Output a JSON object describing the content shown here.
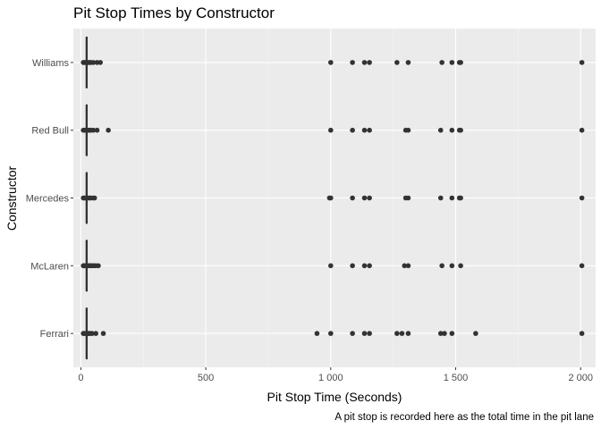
{
  "chart_data": {
    "type": "boxplot",
    "title": "Pit Stop Times by Constructor",
    "xlabel": "Pit Stop Time (Seconds)",
    "ylabel": "Constructor",
    "caption": "A pit stop is recorded here as the total time in the pit lane",
    "xlim": [
      -30,
      2060
    ],
    "x_ticks": [
      {
        "value": 0,
        "label": "0"
      },
      {
        "value": 500,
        "label": "500"
      },
      {
        "value": 1000,
        "label": "1 000"
      },
      {
        "value": 1500,
        "label": "1 500"
      },
      {
        "value": 2000,
        "label": "2 000"
      }
    ],
    "categories": [
      "Ferrari",
      "McLaren",
      "Mercedes",
      "Red Bull",
      "Williams"
    ],
    "series": [
      {
        "category": "Ferrari",
        "whisker_low": 17,
        "q1": 22,
        "median": 23,
        "q3": 25,
        "whisker_high": 28,
        "outliers": [
          10,
          14,
          20,
          30,
          32,
          38,
          45,
          60,
          90,
          945,
          1000,
          1087,
          1135,
          1155,
          1265,
          1285,
          1310,
          1440,
          1455,
          1485,
          1580,
          2005
        ]
      },
      {
        "category": "McLaren",
        "whisker_low": 17,
        "q1": 22,
        "median": 23,
        "q3": 25,
        "whisker_high": 28,
        "outliers": [
          10,
          14,
          20,
          30,
          35,
          40,
          45,
          52,
          60,
          70,
          1000,
          1087,
          1135,
          1155,
          1295,
          1310,
          1445,
          1485,
          1520,
          2005
        ]
      },
      {
        "category": "Mercedes",
        "whisker_low": 17,
        "q1": 22,
        "median": 23,
        "q3": 25,
        "whisker_high": 28,
        "outliers": [
          10,
          14,
          20,
          30,
          35,
          40,
          50,
          55,
          995,
          1000,
          1087,
          1135,
          1155,
          1300,
          1310,
          1440,
          1485,
          1515,
          1520,
          2005
        ]
      },
      {
        "category": "Red Bull",
        "whisker_low": 17,
        "q1": 22,
        "median": 23,
        "q3": 25,
        "whisker_high": 28,
        "outliers": [
          10,
          14,
          20,
          30,
          35,
          40,
          50,
          65,
          110,
          1000,
          1087,
          1135,
          1155,
          1300,
          1310,
          1440,
          1485,
          1515,
          1520,
          2005
        ]
      },
      {
        "category": "Williams",
        "whisker_low": 17,
        "q1": 22,
        "median": 23,
        "q3": 25,
        "whisker_high": 28,
        "outliers": [
          10,
          14,
          20,
          30,
          35,
          40,
          50,
          65,
          78,
          1000,
          1087,
          1135,
          1155,
          1265,
          1310,
          1445,
          1485,
          1515,
          1520,
          2005
        ]
      }
    ],
    "grid": true,
    "colors": {
      "panel_background": "#ebebeb",
      "grid_major": "#ffffff",
      "grid_minor": "#f5f5f5",
      "marks": "#333333",
      "text": "#000000",
      "tick_text": "#4d4d4d"
    }
  }
}
